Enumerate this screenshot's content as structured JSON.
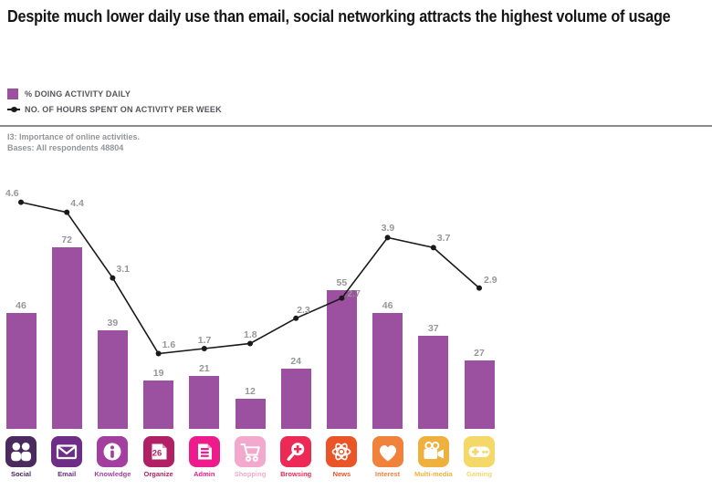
{
  "title": "Despite much lower daily use than email, social networking attracts the highest volume of usage",
  "legend": {
    "bar_label": "% DOING ACTIVITY DAILY",
    "line_label": "NO. OF HOURS SPENT ON ACTIVITY PER WEEK"
  },
  "footnote": {
    "line1": "I3: Importance of online activities.",
    "line2": "Bases: All respondents 48804"
  },
  "colors": {
    "bar": "#9C50A0",
    "line": "#1A1A1A",
    "value_label": "#95979B",
    "legend_text": "#55565A",
    "footnote_text": "#939598",
    "divider": "#87898C"
  },
  "chart_data": {
    "type": "bar+line",
    "title": "Despite much lower daily use than email, social networking attracts the highest volume of usage",
    "categories": [
      "Social",
      "Email",
      "Knowledge",
      "Organize",
      "Admin",
      "Shopping",
      "Browsing",
      "News",
      "Interest",
      "Multi-media",
      "Gaming"
    ],
    "series": [
      {
        "name": "% DOING ACTIVITY DAILY",
        "type": "bar",
        "values": [
          46,
          72,
          39,
          19,
          21,
          12,
          24,
          55,
          46,
          37,
          27
        ]
      },
      {
        "name": "NO. OF HOURS SPENT ON ACTIVITY PER WEEK",
        "type": "line",
        "values": [
          4.6,
          4.4,
          3.1,
          1.6,
          1.7,
          1.8,
          2.3,
          2.7,
          3.9,
          3.7,
          2.9
        ]
      }
    ],
    "category_icons": [
      "people",
      "envelope",
      "info-circle",
      "calendar",
      "document-lines",
      "shopping-cart",
      "magnifier-plus",
      "atom",
      "heart",
      "video-camera",
      "gamepad"
    ],
    "category_colors": [
      "#4B2A5E",
      "#6E2E87",
      "#A23F9F",
      "#B12065",
      "#EE1B8C",
      "#F2A9CD",
      "#ED2A56",
      "#EA5426",
      "#F0823B",
      "#EFB13D",
      "#F4D868"
    ],
    "calendar_day": "26",
    "xlabel": "",
    "ylabel": "",
    "bar_axis_range": [
      0,
      80
    ],
    "line_axis_range": [
      0,
      5
    ],
    "grid": false,
    "legend_position": "top-left"
  }
}
